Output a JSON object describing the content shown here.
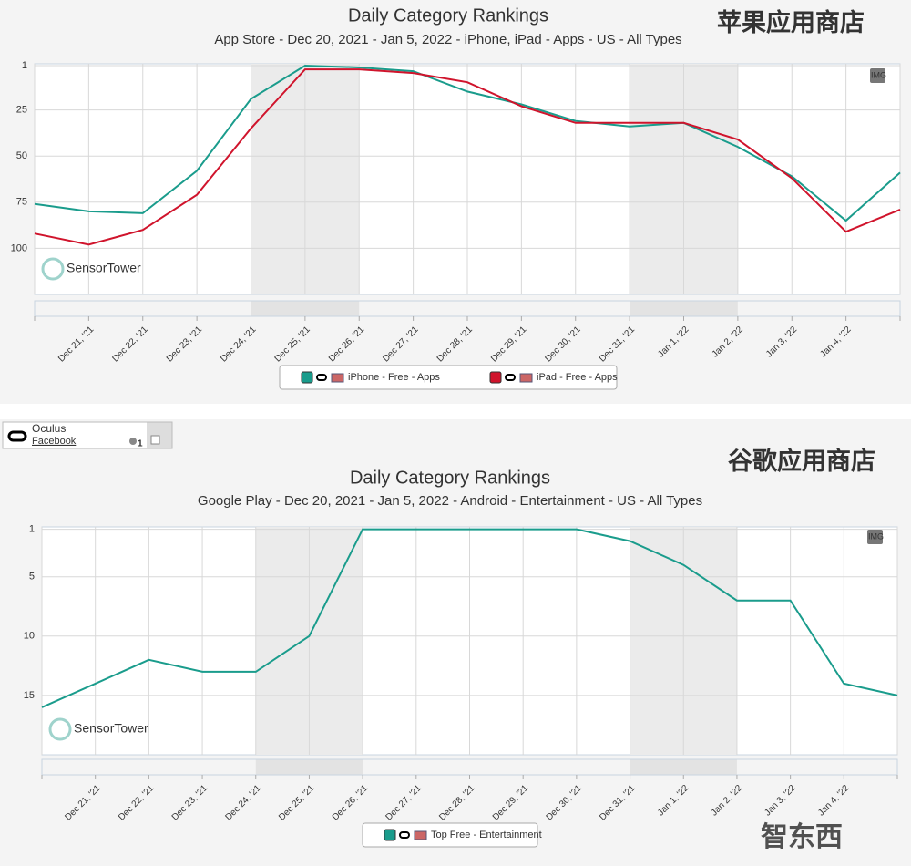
{
  "chart_data": [
    {
      "type": "line",
      "title": "Daily Category Rankings",
      "subtitle": "App Store - Dec 20, 2021 - Jan 5, 2022 - iPhone, iPad - Apps - US - All Types",
      "label": "苹果应用商店",
      "categories": [
        null,
        "Dec 21, '21",
        "Dec 22, '21",
        "Dec 23, '21",
        "Dec 24, '21",
        "Dec 25, '21",
        "Dec 26, '21",
        "Dec 27, '21",
        "Dec 28, '21",
        "Dec 29, '21",
        "Dec 30, '21",
        "Dec 31, '21",
        "Jan 1, '22",
        "Jan 2, '22",
        "Jan 3, '22",
        "Jan 4, '22",
        null
      ],
      "series": [
        {
          "name": "iPhone - Free - Apps",
          "color": "#1a9c8c",
          "values": [
            76,
            80,
            81,
            58,
            19,
            1,
            2,
            4,
            15,
            22,
            31,
            34,
            32,
            45,
            61,
            85,
            59
          ]
        },
        {
          "name": "iPad - Free - Apps",
          "color": "#d0142c",
          "values": [
            92,
            98,
            90,
            71,
            35,
            3,
            3,
            5,
            10,
            23,
            32,
            32,
            32,
            41,
            62,
            91,
            79
          ]
        }
      ],
      "ylim": [
        125,
        0
      ],
      "yticks": [
        1,
        25,
        50,
        75,
        100
      ],
      "grid": true,
      "legend": "bottom"
    },
    {
      "type": "line",
      "title": "Daily Category Rankings",
      "subtitle": "Google Play - Dec 20, 2021 - Jan 5, 2022 - Android - Entertainment - US - All Types",
      "label": "谷歌应用商店",
      "categories": [
        null,
        "Dec 21, '21",
        "Dec 22, '21",
        "Dec 23, '21",
        "Dec 24, '21",
        "Dec 25, '21",
        "Dec 26, '21",
        "Dec 27, '21",
        "Dec 28, '21",
        "Dec 29, '21",
        "Dec 30, '21",
        "Dec 31, '21",
        "Jan 1, '22",
        "Jan 2, '22",
        "Jan 3, '22",
        "Jan 4, '22",
        null
      ],
      "series": [
        {
          "name": "Top Free - Entertainment",
          "color": "#1a9c8c",
          "values": [
            16,
            14,
            12,
            13,
            13,
            10,
            1,
            1,
            1,
            1,
            1,
            2,
            4,
            7,
            7,
            14,
            15
          ]
        }
      ],
      "ylim": [
        20,
        0.8
      ],
      "yticks": [
        1,
        5,
        10,
        15
      ],
      "grid": true,
      "legend": "bottom"
    }
  ],
  "toolbar": {
    "app": "Oculus",
    "publisher": "Facebook",
    "count": 1
  },
  "img_button": "IMG",
  "watermarks": {
    "brand": "SensorTower",
    "site": "智东西"
  }
}
